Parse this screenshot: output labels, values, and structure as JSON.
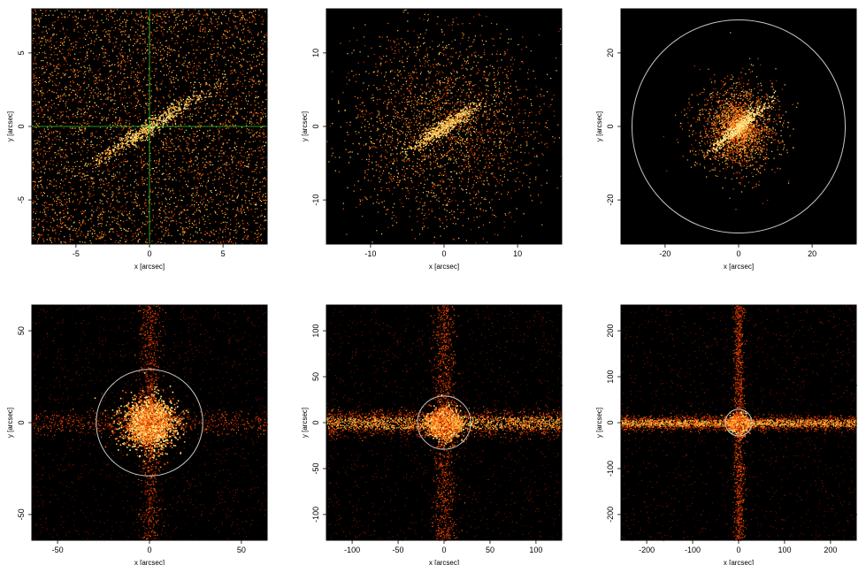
{
  "axis_labels": {
    "x": "x [arcsec]",
    "y": "y [arcsec]"
  },
  "colors": {
    "background": "#000000",
    "circle": "#c8c8c8",
    "crosshair": "#33cc33"
  },
  "panels": [
    {
      "xlim": [
        -8,
        8
      ],
      "ylim": [
        -8,
        8
      ],
      "xticks": [
        "-5",
        "0",
        "5"
      ],
      "xtick_values": [
        -5,
        0,
        5
      ],
      "yticks": [
        "-5",
        "0",
        "5"
      ],
      "ytick_values": [
        -5,
        0,
        5
      ],
      "circle_radius": null,
      "crosshair": true,
      "style": "sparse-wide",
      "density": 4500
    },
    {
      "xlim": [
        -16,
        16
      ],
      "ylim": [
        -16,
        16
      ],
      "xticks": [
        "-10",
        "0",
        "10"
      ],
      "xtick_values": [
        -10,
        0,
        10
      ],
      "yticks": [
        "-10",
        "0",
        "10"
      ],
      "ytick_values": [
        -10,
        0,
        10
      ],
      "circle_radius": null,
      "crosshair": false,
      "style": "sparse-mid",
      "density": 2600
    },
    {
      "xlim": [
        -32,
        32
      ],
      "ylim": [
        -32,
        32
      ],
      "xticks": [
        "-20",
        "0",
        "20"
      ],
      "xtick_values": [
        -20,
        0,
        20
      ],
      "yticks": [
        "-20",
        "0",
        "20"
      ],
      "ytick_values": [
        -20,
        0,
        20
      ],
      "circle_radius": 29,
      "crosshair": false,
      "style": "blob-small",
      "density": 3000
    },
    {
      "xlim": [
        -64,
        64
      ],
      "ylim": [
        -64,
        64
      ],
      "xticks": [
        "-50",
        "0",
        "50"
      ],
      "xtick_values": [
        -50,
        0,
        50
      ],
      "yticks": [
        "-50",
        "0",
        "50"
      ],
      "ytick_values": [
        -50,
        0,
        50
      ],
      "circle_radius": 29,
      "crosshair": false,
      "style": "blob-cross",
      "density": 4000
    },
    {
      "xlim": [
        -128,
        128
      ],
      "ylim": [
        -128,
        128
      ],
      "xticks": [
        "-100",
        "-50",
        "0",
        "50",
        "100"
      ],
      "xtick_values": [
        -100,
        -50,
        0,
        50,
        100
      ],
      "yticks": [
        "-100",
        "-50",
        "0",
        "50",
        "100"
      ],
      "ytick_values": [
        -100,
        -50,
        0,
        50,
        100
      ],
      "circle_radius": 29,
      "crosshair": false,
      "style": "streak",
      "density": 4000
    },
    {
      "xlim": [
        -256,
        256
      ],
      "ylim": [
        -256,
        256
      ],
      "xticks": [
        "-200",
        "-100",
        "0",
        "100",
        "200"
      ],
      "xtick_values": [
        -200,
        -100,
        0,
        100,
        200
      ],
      "yticks": [
        "-200",
        "-100",
        "0",
        "100",
        "200"
      ],
      "ytick_values": [
        -200,
        -100,
        0,
        100,
        200
      ],
      "circle_radius": 29,
      "crosshair": false,
      "style": "streak-wide",
      "density": 4000
    }
  ]
}
